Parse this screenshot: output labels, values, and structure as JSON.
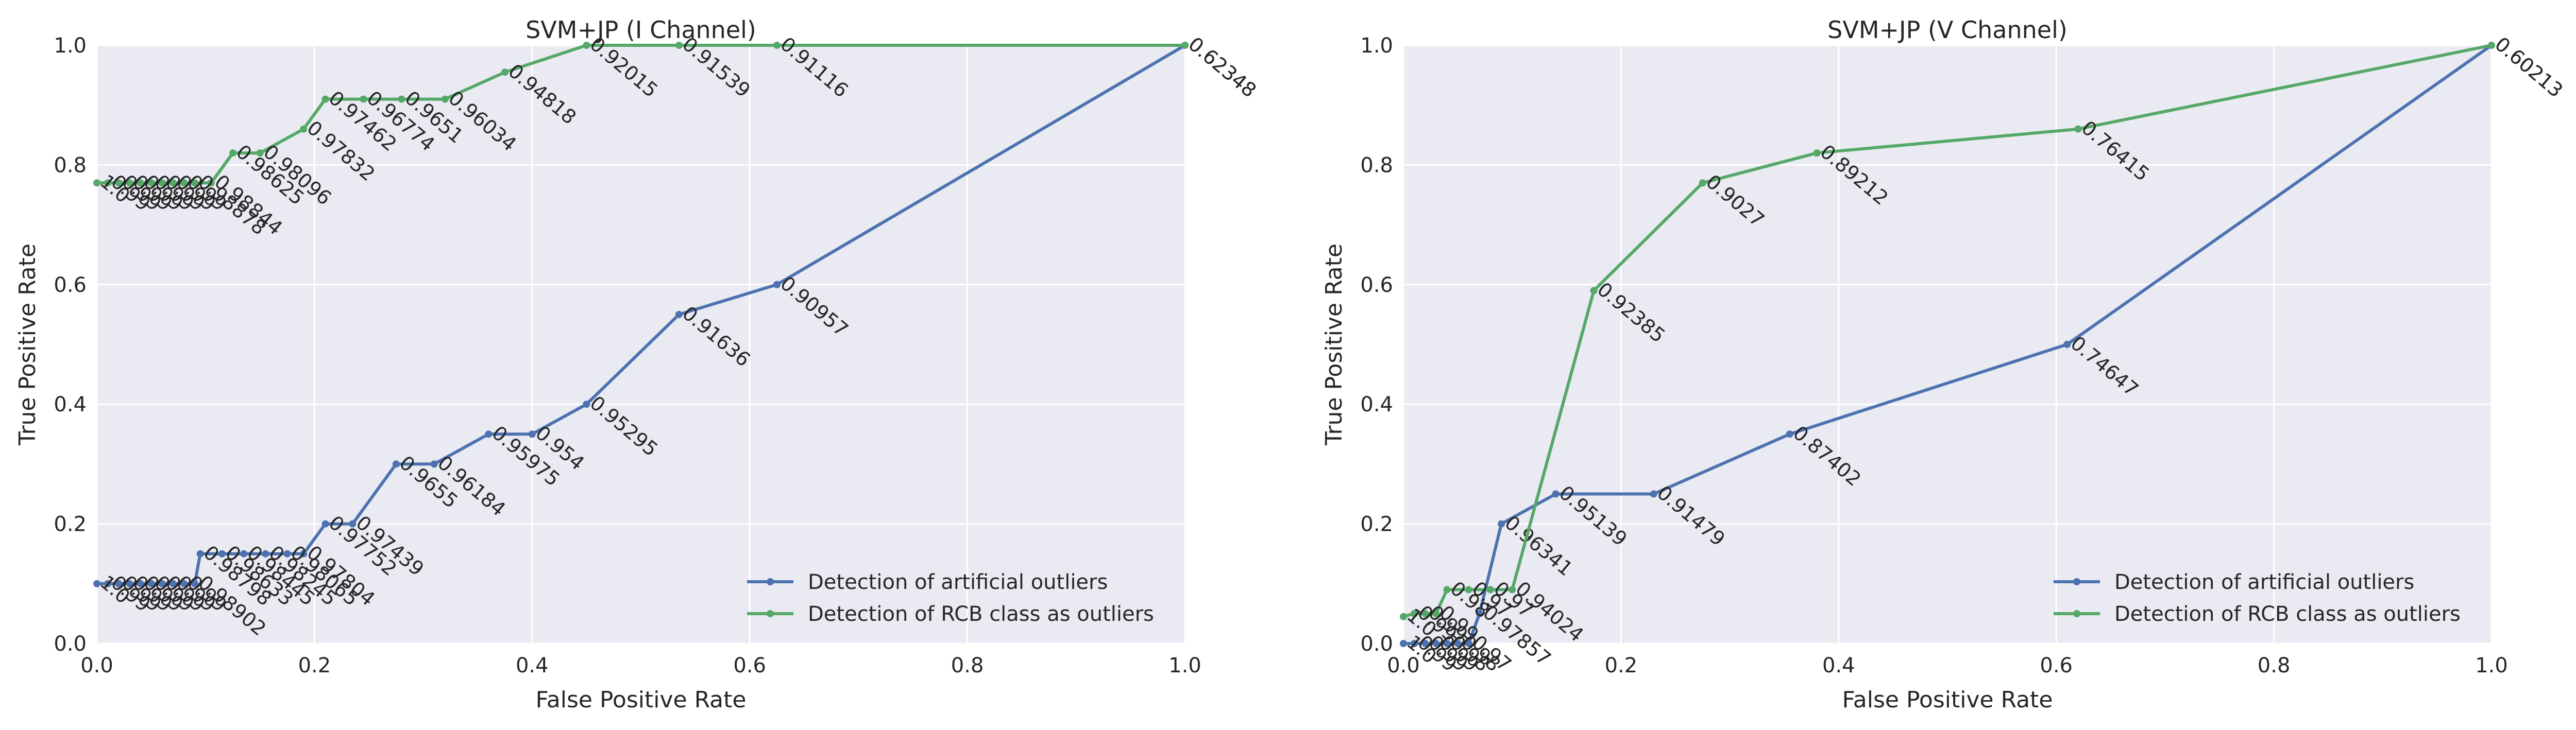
{
  "chart_data": [
    {
      "type": "line",
      "title": "SVM+JP (I Channel)",
      "xlabel": "False Positive Rate",
      "ylabel": "True Positive Rate",
      "xlim": [
        0,
        1
      ],
      "ylim": [
        0,
        1
      ],
      "xticks": [
        "0.0",
        "0.2",
        "0.4",
        "0.6",
        "0.8",
        "1.0"
      ],
      "yticks": [
        "0.0",
        "0.2",
        "0.4",
        "0.6",
        "0.8",
        "1.0"
      ],
      "grid": true,
      "legend_position": "lower-right",
      "series": [
        {
          "name": "Detection of artificial outliers",
          "color": "#4C72B0",
          "points": [
            {
              "x": 0.0,
              "y": 0.1,
              "label": "1.0"
            },
            {
              "x": 0.01,
              "y": 0.1,
              "label": "0.99"
            },
            {
              "x": 0.02,
              "y": 0.1,
              "label": "0.99"
            },
            {
              "x": 0.03,
              "y": 0.1,
              "label": "0.99"
            },
            {
              "x": 0.04,
              "y": 0.1,
              "label": "0.99"
            },
            {
              "x": 0.05,
              "y": 0.1,
              "label": "0.99"
            },
            {
              "x": 0.06,
              "y": 0.1,
              "label": "0.99"
            },
            {
              "x": 0.07,
              "y": 0.1,
              "label": "0.99"
            },
            {
              "x": 0.08,
              "y": 0.1,
              "label": "0.99"
            },
            {
              "x": 0.09,
              "y": 0.1,
              "label": "0.98902"
            },
            {
              "x": 0.095,
              "y": 0.15,
              "label": "0.98798"
            },
            {
              "x": 0.115,
              "y": 0.15,
              "label": "0.98633"
            },
            {
              "x": 0.135,
              "y": 0.15,
              "label": "0.98445"
            },
            {
              "x": 0.155,
              "y": 0.15,
              "label": "0.98245"
            },
            {
              "x": 0.175,
              "y": 0.15,
              "label": "0.98065"
            },
            {
              "x": 0.19,
              "y": 0.15,
              "label": "0.97804"
            },
            {
              "x": 0.21,
              "y": 0.2,
              "label": "0.97752"
            },
            {
              "x": 0.235,
              "y": 0.2,
              "label": "0.97439"
            },
            {
              "x": 0.275,
              "y": 0.3,
              "label": "0.9655"
            },
            {
              "x": 0.31,
              "y": 0.3,
              "label": "0.96184"
            },
            {
              "x": 0.36,
              "y": 0.35,
              "label": "0.95975"
            },
            {
              "x": 0.4,
              "y": 0.35,
              "label": "0.954"
            },
            {
              "x": 0.45,
              "y": 0.4,
              "label": "0.95295"
            },
            {
              "x": 0.535,
              "y": 0.55,
              "label": "0.91636"
            },
            {
              "x": 0.625,
              "y": 0.6,
              "label": "0.90957"
            },
            {
              "x": 1.0,
              "y": 1.0,
              "label": "0.62348"
            }
          ]
        },
        {
          "name": "Detection of RCB class as outliers",
          "color": "#55A868",
          "points": [
            {
              "x": 0.0,
              "y": 0.77,
              "label": "1.0"
            },
            {
              "x": 0.01,
              "y": 0.77,
              "label": "0.99"
            },
            {
              "x": 0.02,
              "y": 0.77,
              "label": "0.99"
            },
            {
              "x": 0.03,
              "y": 0.77,
              "label": "0.99"
            },
            {
              "x": 0.04,
              "y": 0.77,
              "label": "0.99"
            },
            {
              "x": 0.05,
              "y": 0.77,
              "label": "0.99"
            },
            {
              "x": 0.06,
              "y": 0.77,
              "label": "0.99"
            },
            {
              "x": 0.07,
              "y": 0.77,
              "label": "0.99"
            },
            {
              "x": 0.08,
              "y": 0.77,
              "label": "0.99"
            },
            {
              "x": 0.09,
              "y": 0.77,
              "label": "0.98878"
            },
            {
              "x": 0.105,
              "y": 0.77,
              "label": "0.98844"
            },
            {
              "x": 0.125,
              "y": 0.82,
              "label": "0.98625"
            },
            {
              "x": 0.15,
              "y": 0.82,
              "label": "0.98096"
            },
            {
              "x": 0.19,
              "y": 0.86,
              "label": "0.97832"
            },
            {
              "x": 0.21,
              "y": 0.91,
              "label": "0.97462"
            },
            {
              "x": 0.245,
              "y": 0.91,
              "label": "0.96774"
            },
            {
              "x": 0.28,
              "y": 0.91,
              "label": "0.9651"
            },
            {
              "x": 0.32,
              "y": 0.91,
              "label": "0.96034"
            },
            {
              "x": 0.375,
              "y": 0.955,
              "label": "0.94818"
            },
            {
              "x": 0.45,
              "y": 1.0,
              "label": "0.92015"
            },
            {
              "x": 0.535,
              "y": 1.0,
              "label": "0.91539"
            },
            {
              "x": 0.625,
              "y": 1.0,
              "label": "0.91116"
            },
            {
              "x": 1.0,
              "y": 1.0,
              "label": "0.62348"
            }
          ]
        }
      ]
    },
    {
      "type": "line",
      "title": "SVM+JP (V Channel)",
      "xlabel": "False Positive Rate",
      "ylabel": "True Positive Rate",
      "xlim": [
        0,
        1
      ],
      "ylim": [
        0,
        1
      ],
      "xticks": [
        "0.0",
        "0.2",
        "0.4",
        "0.6",
        "0.8",
        "1.0"
      ],
      "yticks": [
        "0.0",
        "0.2",
        "0.4",
        "0.6",
        "0.8",
        "1.0"
      ],
      "grid": true,
      "legend_position": "lower-right",
      "series": [
        {
          "name": "Detection of artificial outliers",
          "color": "#4C72B0",
          "points": [
            {
              "x": 0.0,
              "y": 0.0,
              "label": "1.0"
            },
            {
              "x": 0.01,
              "y": 0.0,
              "label": "0.99"
            },
            {
              "x": 0.02,
              "y": 0.0,
              "label": "0.99"
            },
            {
              "x": 0.03,
              "y": 0.0,
              "label": "0.99"
            },
            {
              "x": 0.04,
              "y": 0.0,
              "label": "0.98"
            },
            {
              "x": 0.05,
              "y": 0.0,
              "label": "0.98"
            },
            {
              "x": 0.06,
              "y": 0.0,
              "label": "0.97"
            },
            {
              "x": 0.07,
              "y": 0.05,
              "label": "0.97857"
            },
            {
              "x": 0.09,
              "y": 0.2,
              "label": "0.96341"
            },
            {
              "x": 0.14,
              "y": 0.25,
              "label": "0.95139"
            },
            {
              "x": 0.23,
              "y": 0.25,
              "label": "0.91479"
            },
            {
              "x": 0.355,
              "y": 0.35,
              "label": "0.87402"
            },
            {
              "x": 0.61,
              "y": 0.5,
              "label": "0.74647"
            },
            {
              "x": 1.0,
              "y": 1.0,
              "label": "0.60213"
            }
          ]
        },
        {
          "name": "Detection of RCB class as outliers",
          "color": "#55A868",
          "points": [
            {
              "x": 0.0,
              "y": 0.045,
              "label": "1.0"
            },
            {
              "x": 0.01,
              "y": 0.05,
              "label": "0.99"
            },
            {
              "x": 0.02,
              "y": 0.05,
              "label": "0.99"
            },
            {
              "x": 0.03,
              "y": 0.05,
              "label": "0.99"
            },
            {
              "x": 0.04,
              "y": 0.09,
              "label": "0.98"
            },
            {
              "x": 0.06,
              "y": 0.09,
              "label": "0.97"
            },
            {
              "x": 0.08,
              "y": 0.09,
              "label": "0.97"
            },
            {
              "x": 0.1,
              "y": 0.09,
              "label": "0.94024"
            },
            {
              "x": 0.175,
              "y": 0.59,
              "label": "0.92385"
            },
            {
              "x": 0.275,
              "y": 0.77,
              "label": "0.9027"
            },
            {
              "x": 0.38,
              "y": 0.82,
              "label": "0.89212"
            },
            {
              "x": 0.62,
              "y": 0.86,
              "label": "0.76415"
            },
            {
              "x": 1.0,
              "y": 1.0,
              "label": "0.60213"
            }
          ]
        }
      ]
    }
  ]
}
